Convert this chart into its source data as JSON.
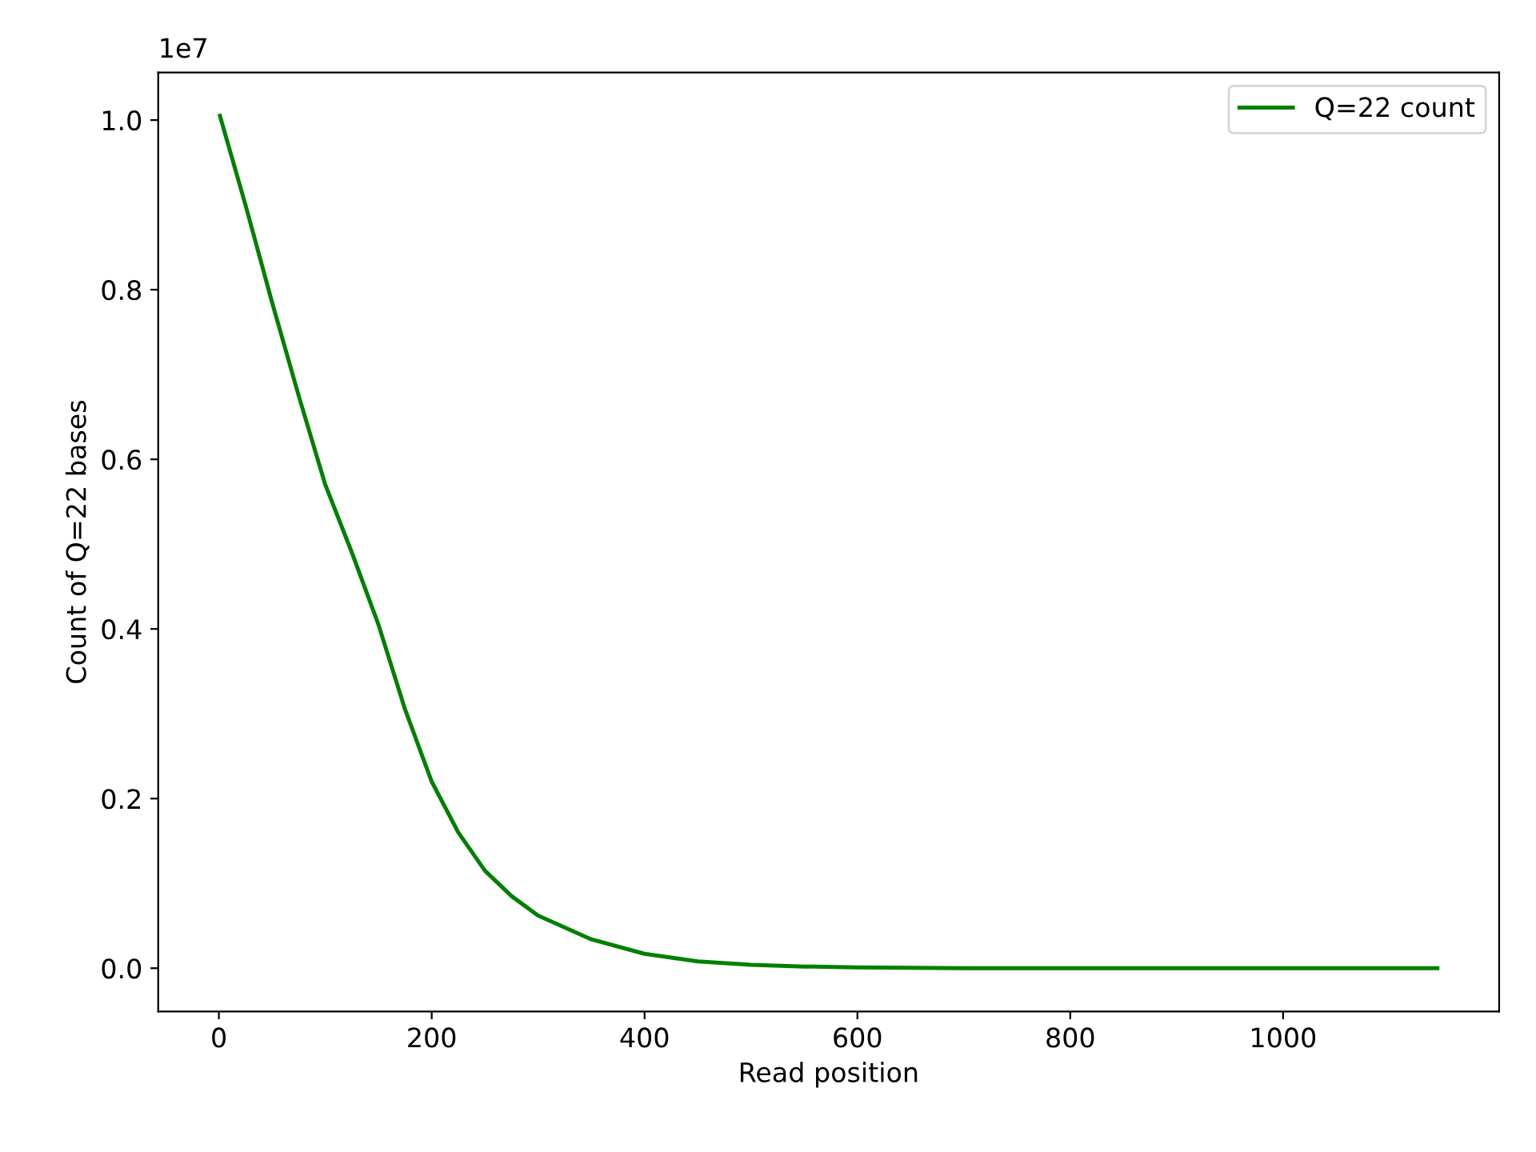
{
  "chart_data": {
    "type": "line",
    "xlabel": "Read position",
    "ylabel": "Count of Q=22 bases",
    "x": [
      1,
      25,
      50,
      75,
      100,
      125,
      150,
      175,
      200,
      225,
      250,
      275,
      300,
      350,
      400,
      450,
      500,
      550,
      600,
      700,
      800,
      900,
      1000,
      1100,
      1145
    ],
    "series": [
      {
        "name": "Q=22 count",
        "color": "#008000",
        "values": [
          1.005,
          0.9,
          0.785,
          0.675,
          0.57,
          0.49,
          0.405,
          0.305,
          0.22,
          0.16,
          0.115,
          0.085,
          0.062,
          0.034,
          0.017,
          0.008,
          0.004,
          0.002,
          0.001,
          0,
          0,
          0,
          0,
          0,
          0
        ]
      }
    ],
    "xlim": [
      -57,
      1203
    ],
    "ylim": [
      -0.051,
      1.056
    ],
    "xticks": [
      0,
      200,
      400,
      600,
      800,
      1000
    ],
    "yticks": [
      {
        "value": 0,
        "label": "0.0"
      },
      0.2,
      0.4,
      0.6,
      0.8,
      {
        "value": 1,
        "label": "1.0"
      }
    ],
    "annotations": [
      "1e7"
    ],
    "legend": "top right",
    "grid": false,
    "line_style": "solid",
    "marker": "none"
  }
}
